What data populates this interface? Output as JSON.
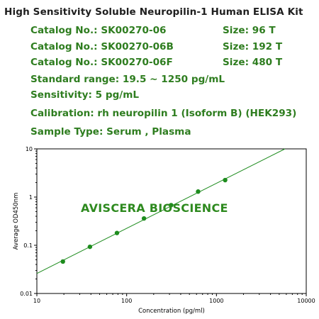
{
  "header": {
    "title": "High Sensitivity Soluble Neuropilin-1 Human ELISA Kit",
    "catalog_rows": [
      {
        "catalog": "Catalog No.: SK00270-06",
        "size": "Size: 96 T"
      },
      {
        "catalog": "Catalog No.: SK00270-06B",
        "size": "Size: 192 T"
      },
      {
        "catalog": "Catalog No.: SK00270-06F",
        "size": "Size: 480 T"
      }
    ],
    "standard_range": "Standard range: 19.5 ~ 1250 pg/mL",
    "sensitivity": "Sensitivity: 5 pg/mL",
    "calibration": "Calibration: rh neuropilin 1 (Isoform B) (HEK293)",
    "sample_type": "Sample Type: Serum , Plasma"
  },
  "watermark": "AVISCERA BIOSCIENCE",
  "colors": {
    "title": "#1f1f1f",
    "accent": "#2e7d1f",
    "series": "#1e8c1e",
    "watermark": "#2e8a1f"
  },
  "chart_data": {
    "type": "scatter",
    "xlabel": "Concentration (pg/ml)",
    "ylabel": "Average OD450nm",
    "x_scale": "log",
    "y_scale": "log",
    "xlim": [
      10,
      10000
    ],
    "ylim": [
      0.01,
      10
    ],
    "x_ticks": [
      10,
      100,
      1000,
      10000
    ],
    "x_tick_labels": [
      "10",
      "100",
      "1000",
      "10000"
    ],
    "y_ticks": [
      0.01,
      0.1,
      1,
      10
    ],
    "y_tick_labels": [
      "0.01",
      "0.1",
      "1",
      "10"
    ],
    "grid": false,
    "series": [
      {
        "x": [
          19.5,
          39,
          78,
          156,
          312.5,
          625,
          1250
        ],
        "y": [
          0.046,
          0.093,
          0.18,
          0.36,
          0.68,
          1.3,
          2.25
        ],
        "fit_line": {
          "x": [
            10,
            5800
          ],
          "y": [
            0.026,
            10
          ]
        }
      }
    ]
  }
}
